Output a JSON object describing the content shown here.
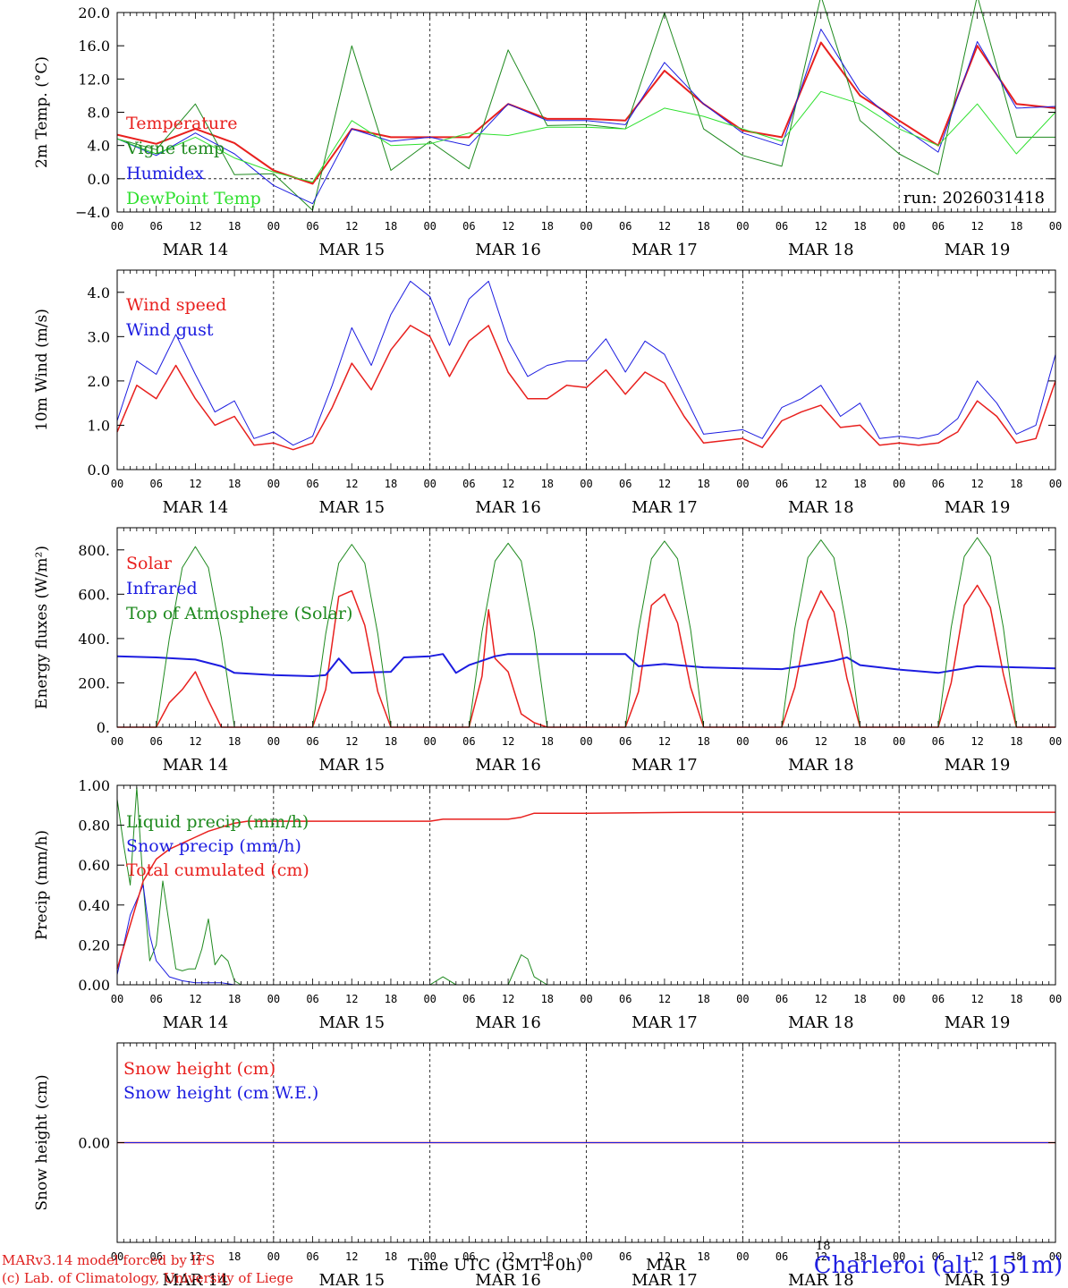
{
  "colors": {
    "red": "#e8201e",
    "darkgreen": "#1f8a1f",
    "blue": "#1c1ce0",
    "lightgreen": "#2ee02e",
    "axis": "#000000"
  },
  "x_axis": {
    "hour_labels": [
      "00",
      "06",
      "12",
      "18",
      "00",
      "06",
      "12",
      "18",
      "00",
      "06",
      "12",
      "18",
      "00",
      "06",
      "12",
      "18",
      "00",
      "06",
      "12",
      "18",
      "00",
      "06",
      "12",
      "18",
      "00"
    ],
    "day_labels": [
      "MAR 14",
      "MAR 15",
      "MAR 16",
      "MAR 17",
      "MAR 18",
      "MAR 19"
    ]
  },
  "footer": {
    "model": "MARv3.14 model forced by IFS",
    "credit": "(c) Lab. of Climatology, University of Liege",
    "time_label": "Time UTC (GMT+0h)",
    "month": "MAR",
    "day_marker": "18",
    "station": "Charleroi (alt. 151m)"
  },
  "chart_data": [
    {
      "type": "line",
      "ylabel": "2m Temp. (°C)",
      "ylim": [
        -4,
        20
      ],
      "yticks": [
        "−4.0",
        "0.0",
        "4.0",
        "8.0",
        "12.0",
        "16.0",
        "20.0"
      ],
      "ytick_values": [
        -4,
        0,
        4,
        8,
        12,
        16,
        20
      ],
      "zero_line": true,
      "annotation": "run: 2026031418",
      "series": [
        {
          "name": "Temperature",
          "color": "#e8201e",
          "width": 2,
          "x": [
            0,
            6,
            12,
            18,
            24,
            30,
            36,
            42,
            48,
            54,
            60,
            66,
            72,
            78,
            84,
            90,
            96,
            102,
            108,
            114,
            120,
            126,
            132,
            138,
            144
          ],
          "y": [
            5.3,
            4.2,
            6.0,
            4.3,
            1.0,
            -0.6,
            6.0,
            5.0,
            5.0,
            5.0,
            9.0,
            7.2,
            7.2,
            7.0,
            13.0,
            9.0,
            5.8,
            5.0,
            16.4,
            10.0,
            7.0,
            4.0,
            16.0,
            9.0,
            8.5
          ]
        },
        {
          "name": "Vigne temp",
          "color": "#1f8a1f",
          "width": 1,
          "x": [
            0,
            6,
            12,
            18,
            24,
            30,
            36,
            42,
            48,
            54,
            60,
            66,
            72,
            78,
            84,
            90,
            96,
            102,
            108,
            114,
            120,
            126,
            132,
            138,
            144
          ],
          "y": [
            4.8,
            3.5,
            9.0,
            0.5,
            0.6,
            -3.8,
            16.0,
            1.0,
            4.5,
            1.2,
            15.5,
            6.4,
            6.5,
            6.0,
            20.0,
            6.0,
            2.8,
            1.5,
            22.0,
            7.0,
            3.0,
            0.5,
            22.0,
            5.0,
            5.0
          ]
        },
        {
          "name": "Humidex",
          "color": "#1c1ce0",
          "width": 1,
          "x": [
            0,
            6,
            12,
            18,
            24,
            30,
            36,
            42,
            48,
            54,
            60,
            66,
            72,
            78,
            84,
            90,
            96,
            102,
            108,
            114,
            120,
            126,
            132,
            138,
            144
          ],
          "y": [
            4.8,
            2.8,
            5.5,
            3.0,
            -0.8,
            -3.0,
            6.0,
            4.5,
            5.0,
            4.0,
            9.0,
            7.0,
            7.0,
            6.5,
            14.0,
            9.0,
            5.5,
            4.0,
            18.0,
            10.5,
            6.5,
            3.2,
            16.5,
            8.5,
            8.7
          ]
        },
        {
          "name": "DewPoint Temp",
          "color": "#2ee02e",
          "width": 1,
          "x": [
            0,
            6,
            12,
            18,
            24,
            30,
            36,
            42,
            48,
            54,
            60,
            66,
            72,
            78,
            84,
            90,
            96,
            102,
            108,
            114,
            120,
            126,
            132,
            138,
            144
          ],
          "y": [
            4.8,
            3.0,
            5.0,
            2.5,
            0.8,
            -0.4,
            7.0,
            4.0,
            4.2,
            5.5,
            5.2,
            6.2,
            6.2,
            6.0,
            8.5,
            7.5,
            6.0,
            4.5,
            10.5,
            9.0,
            6.0,
            4.0,
            9.0,
            3.0,
            8.0
          ]
        }
      ]
    },
    {
      "type": "line",
      "ylabel": "10m Wind (m/s)",
      "ylim": [
        0,
        4.5
      ],
      "yticks": [
        "0.0",
        "1.0",
        "2.0",
        "3.0",
        "4.0"
      ],
      "ytick_values": [
        0,
        1,
        2,
        3,
        4
      ],
      "series": [
        {
          "name": "Wind speed",
          "color": "#e8201e",
          "width": 1.5,
          "x": [
            0,
            3,
            6,
            9,
            12,
            15,
            18,
            21,
            24,
            27,
            30,
            33,
            36,
            39,
            42,
            45,
            48,
            51,
            54,
            57,
            60,
            63,
            66,
            69,
            72,
            75,
            78,
            81,
            84,
            87,
            90,
            93,
            96,
            99,
            102,
            105,
            108,
            111,
            114,
            117,
            120,
            123,
            126,
            129,
            132,
            135,
            138,
            141,
            144
          ],
          "y": [
            0.85,
            1.9,
            1.6,
            2.35,
            1.6,
            1.0,
            1.2,
            0.55,
            0.6,
            0.45,
            0.6,
            1.4,
            2.4,
            1.8,
            2.7,
            3.25,
            3.0,
            2.1,
            2.9,
            3.25,
            2.2,
            1.6,
            1.6,
            1.9,
            1.85,
            2.25,
            1.7,
            2.2,
            1.95,
            1.2,
            0.6,
            0.65,
            0.7,
            0.5,
            1.1,
            1.3,
            1.45,
            0.95,
            1.0,
            0.55,
            0.6,
            0.55,
            0.6,
            0.85,
            1.55,
            1.2,
            0.6,
            0.7,
            2.0
          ]
        },
        {
          "name": "Wind gust",
          "color": "#1c1ce0",
          "width": 1,
          "x": [
            0,
            3,
            6,
            9,
            12,
            15,
            18,
            21,
            24,
            27,
            30,
            33,
            36,
            39,
            42,
            45,
            48,
            51,
            54,
            57,
            60,
            63,
            66,
            69,
            72,
            75,
            78,
            81,
            84,
            87,
            90,
            93,
            96,
            99,
            102,
            105,
            108,
            111,
            114,
            117,
            120,
            123,
            126,
            129,
            132,
            135,
            138,
            141,
            144
          ],
          "y": [
            1.1,
            2.45,
            2.15,
            3.05,
            2.15,
            1.3,
            1.55,
            0.7,
            0.85,
            0.55,
            0.75,
            1.9,
            3.2,
            2.35,
            3.5,
            4.25,
            3.9,
            2.8,
            3.85,
            4.25,
            2.9,
            2.1,
            2.35,
            2.45,
            2.45,
            2.95,
            2.2,
            2.9,
            2.6,
            1.7,
            0.8,
            0.85,
            0.9,
            0.7,
            1.4,
            1.6,
            1.9,
            1.2,
            1.5,
            0.7,
            0.75,
            0.7,
            0.8,
            1.15,
            2.0,
            1.5,
            0.8,
            1.0,
            2.6
          ]
        }
      ]
    },
    {
      "type": "line",
      "ylabel": "Energy fluxes (W/m²)",
      "ylim": [
        0,
        900
      ],
      "yticks": [
        "0.",
        "200.",
        "400.",
        "600.",
        "800."
      ],
      "ytick_values": [
        0,
        200,
        400,
        600,
        800
      ],
      "series": [
        {
          "name": "Solar",
          "color": "#e8201e",
          "width": 1.5,
          "x": [
            0,
            6,
            8,
            10,
            12,
            14,
            16,
            18,
            24,
            30,
            32,
            34,
            36,
            38,
            40,
            42,
            48,
            54,
            56,
            57,
            58,
            60,
            62,
            64,
            66,
            72,
            78,
            80,
            82,
            84,
            86,
            88,
            90,
            96,
            102,
            104,
            106,
            108,
            110,
            112,
            114,
            120,
            126,
            128,
            130,
            132,
            134,
            136,
            138,
            144
          ],
          "y": [
            0,
            0,
            110,
            170,
            250,
            120,
            0,
            0,
            0,
            0,
            170,
            590,
            615,
            460,
            160,
            0,
            0,
            0,
            230,
            530,
            310,
            250,
            60,
            20,
            0,
            0,
            0,
            160,
            550,
            600,
            470,
            180,
            0,
            0,
            0,
            180,
            480,
            615,
            520,
            220,
            0,
            0,
            0,
            200,
            550,
            640,
            540,
            240,
            0,
            0
          ]
        },
        {
          "name": "Infrared",
          "color": "#1c1ce0",
          "width": 2,
          "x": [
            0,
            6,
            12,
            16,
            18,
            24,
            30,
            32,
            34,
            36,
            42,
            44,
            48,
            50,
            52,
            54,
            56,
            58,
            60,
            66,
            72,
            78,
            80,
            84,
            90,
            96,
            102,
            108,
            110,
            112,
            114,
            120,
            126,
            132,
            138,
            144
          ],
          "y": [
            320,
            315,
            305,
            275,
            245,
            235,
            230,
            235,
            310,
            245,
            250,
            315,
            320,
            330,
            245,
            280,
            300,
            320,
            330,
            330,
            330,
            330,
            275,
            285,
            270,
            265,
            262,
            290,
            300,
            315,
            280,
            260,
            245,
            275,
            270,
            265
          ]
        },
        {
          "name": "Top of Atmosphere (Solar)",
          "color": "#1f8a1f",
          "width": 1,
          "x": [
            0,
            6,
            8,
            10,
            12,
            14,
            16,
            18,
            24,
            30,
            32,
            34,
            36,
            38,
            40,
            42,
            48,
            54,
            56,
            58,
            60,
            62,
            64,
            66,
            72,
            78,
            80,
            82,
            84,
            86,
            88,
            90,
            96,
            102,
            104,
            106,
            108,
            110,
            112,
            114,
            120,
            126,
            128,
            130,
            132,
            134,
            136,
            138,
            144
          ],
          "y": [
            0,
            0,
            400,
            720,
            815,
            720,
            400,
            0,
            0,
            0,
            420,
            740,
            825,
            740,
            420,
            0,
            0,
            0,
            430,
            750,
            830,
            750,
            430,
            0,
            0,
            0,
            440,
            760,
            840,
            760,
            440,
            0,
            0,
            0,
            445,
            765,
            845,
            765,
            445,
            0,
            0,
            0,
            450,
            770,
            855,
            770,
            450,
            0,
            0
          ]
        }
      ]
    },
    {
      "type": "line",
      "ylabel": "Precip (mm/h)",
      "ylim": [
        0,
        1
      ],
      "yticks": [
        "0.00",
        "0.20",
        "0.40",
        "0.60",
        "0.80",
        "1.00"
      ],
      "ytick_values": [
        0,
        0.2,
        0.4,
        0.6,
        0.8,
        1.0
      ],
      "series": [
        {
          "name": "Liquid precip (mm/h)",
          "color": "#1f8a1f",
          "width": 1,
          "x": [
            0,
            1,
            2,
            3,
            4,
            5,
            6,
            7,
            8,
            9,
            10,
            11,
            12,
            13,
            14,
            15,
            16,
            17,
            18,
            19,
            20,
            24,
            48,
            50,
            52,
            60,
            62,
            63,
            64,
            66,
            72,
            144
          ],
          "y": [
            0.93,
            0.7,
            0.5,
            0.99,
            0.5,
            0.12,
            0.2,
            0.52,
            0.3,
            0.08,
            0.07,
            0.08,
            0.08,
            0.18,
            0.33,
            0.1,
            0.15,
            0.12,
            0.02,
            0.0,
            0.0,
            0.0,
            0.0,
            0.04,
            0.0,
            0.0,
            0.15,
            0.13,
            0.04,
            0.0,
            0.0,
            0.0
          ]
        },
        {
          "name": "Snow precip (mm/h)",
          "color": "#1c1ce0",
          "width": 1,
          "x": [
            0,
            2,
            4,
            5,
            6,
            8,
            10,
            12,
            14,
            16,
            18,
            20,
            24,
            144
          ],
          "y": [
            0.05,
            0.35,
            0.5,
            0.25,
            0.12,
            0.04,
            0.02,
            0.01,
            0.01,
            0.01,
            0.0,
            0.0,
            0.0,
            0.0
          ]
        },
        {
          "name": "Total cumulated (cm)",
          "color": "#e8201e",
          "width": 1.5,
          "x": [
            0,
            2,
            4,
            6,
            8,
            10,
            12,
            14,
            16,
            18,
            20,
            22,
            24,
            36,
            48,
            50,
            60,
            62,
            64,
            66,
            72,
            90,
            144
          ],
          "y": [
            0.08,
            0.3,
            0.52,
            0.63,
            0.68,
            0.71,
            0.74,
            0.77,
            0.79,
            0.81,
            0.82,
            0.82,
            0.82,
            0.82,
            0.82,
            0.83,
            0.83,
            0.84,
            0.86,
            0.86,
            0.86,
            0.865,
            0.865
          ]
        }
      ]
    },
    {
      "type": "line",
      "ylabel": "Snow height (cm)",
      "ylim": [
        -1,
        1
      ],
      "yticks": [
        "0.00"
      ],
      "ytick_values": [
        0
      ],
      "series": [
        {
          "name": "Snow height (cm)",
          "color": "#e8201e",
          "width": 1.5,
          "x": [
            0,
            144
          ],
          "y": [
            0,
            0
          ]
        },
        {
          "name": "Snow height (cm W.E.)",
          "color": "#1c1ce0",
          "width": 1,
          "x": [
            0,
            144
          ],
          "y": [
            0,
            0
          ]
        }
      ]
    }
  ]
}
